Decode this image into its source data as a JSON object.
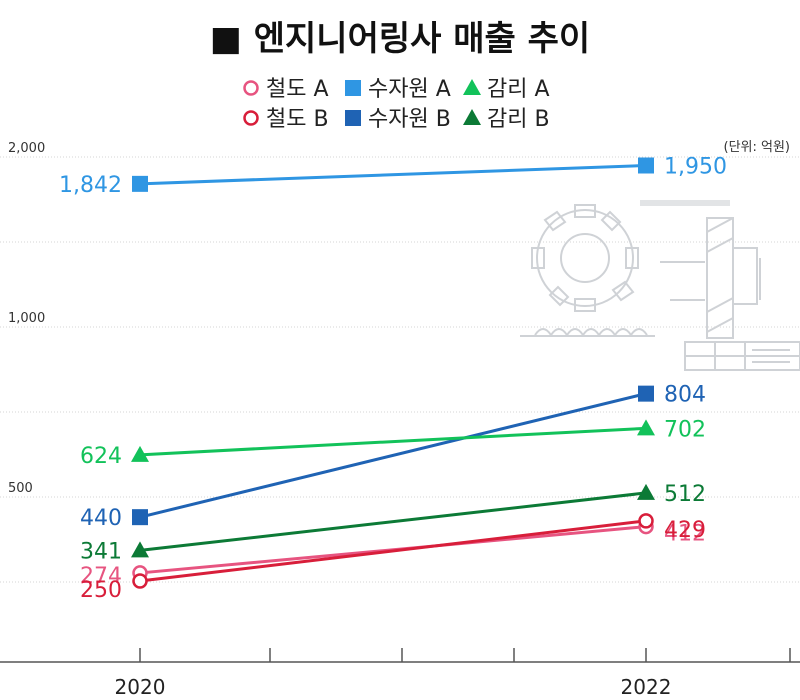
{
  "chart_data": {
    "type": "line",
    "title": "■ 엔지니어링사 매출 추이",
    "unit_note": "(단위: 억원)",
    "categories": [
      "2020",
      "2022"
    ],
    "y_tick_labels": [
      "2,000",
      "1,000",
      "500"
    ],
    "series": [
      {
        "name": "철도 A",
        "marker": "circle-open",
        "color": "#e75480",
        "values": [
          274,
          412
        ],
        "labels": [
          "274",
          "412"
        ]
      },
      {
        "name": "철도 B",
        "marker": "circle-open",
        "color": "#d81e3a",
        "values": [
          250,
          429
        ],
        "labels": [
          "250",
          "429"
        ]
      },
      {
        "name": "수자원 A",
        "marker": "square",
        "color": "#2f96e3",
        "values": [
          1842,
          1950
        ],
        "labels": [
          "1,842",
          "1,950"
        ]
      },
      {
        "name": "수자원 B",
        "marker": "square",
        "color": "#1f63b4",
        "values": [
          440,
          804
        ],
        "labels": [
          "440",
          "804"
        ]
      },
      {
        "name": "감리 A",
        "marker": "triangle",
        "color": "#12c25a",
        "values": [
          624,
          702
        ],
        "labels": [
          "624",
          "702"
        ]
      },
      {
        "name": "감리 B",
        "marker": "triangle",
        "color": "#0c7a36",
        "values": [
          341,
          512
        ],
        "labels": [
          "341",
          "512"
        ]
      }
    ],
    "legend_position": "top-center",
    "grid": true
  }
}
